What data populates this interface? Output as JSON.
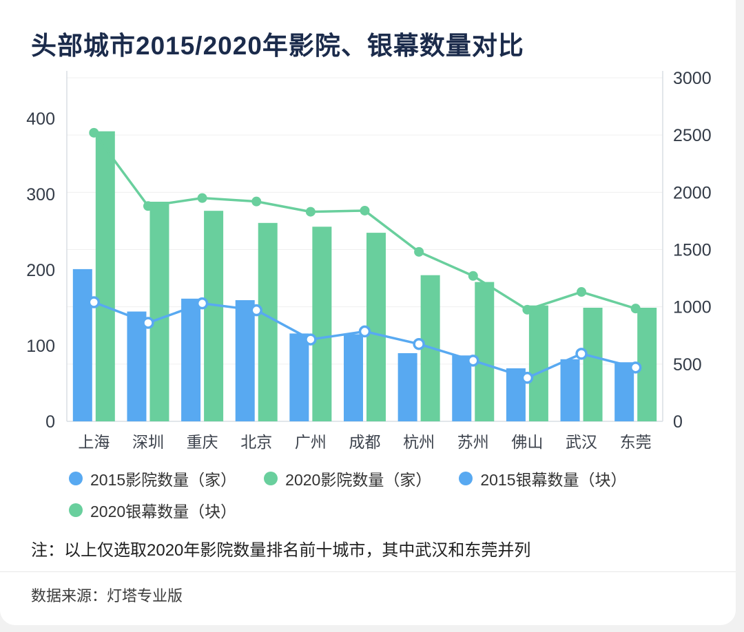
{
  "title": "头部城市2015/2020年影院、银幕数量对比",
  "note": "注：以上仅选取2020年影院数量排名前十城市，其中武汉和东莞并列",
  "source": "数据来源：灯塔专业版",
  "colors": {
    "blue": "#58a9f1",
    "green": "#69cf9d",
    "title_text": "#1b2b4b",
    "axis_text": "#333b47",
    "category_text": "#3d434d",
    "grid": "#efefef",
    "axis_line": "#d9dde3",
    "legend_text": "#333333",
    "divider": "#e8e8e8",
    "card_bg": "#ffffff"
  },
  "chart_data": {
    "type": "bar",
    "subtype": "grouped bars + two lines, dual y-axes",
    "title": "头部城市2015/2020年影院、银幕数量对比",
    "categories": [
      "上海",
      "深圳",
      "重庆",
      "北京",
      "广州",
      "成都",
      "杭州",
      "苏州",
      "佛山",
      "武汉",
      "东莞"
    ],
    "left_axis": {
      "ticks": [
        0,
        100,
        200,
        300,
        400
      ],
      "applies_to": "影院数量（家）"
    },
    "right_axis": {
      "ticks": [
        0,
        500,
        1000,
        1500,
        2000,
        2500,
        3000
      ],
      "applies_to": "银幕数量（块）"
    },
    "legend_position": "bottom",
    "grid": "faint horizontal lines",
    "series": [
      {
        "name": "2015影院数量（家）",
        "type": "bar",
        "axis": "left",
        "color_key": "blue",
        "marker": "none",
        "values": [
          201,
          145,
          162,
          160,
          116,
          115,
          90,
          87,
          70,
          82,
          78
        ]
      },
      {
        "name": "2020影院数量（家）",
        "type": "bar",
        "axis": "left",
        "color_key": "green",
        "marker": "none",
        "values": [
          383,
          290,
          278,
          262,
          257,
          249,
          193,
          184,
          153,
          150,
          150
        ]
      },
      {
        "name": "2015银幕数量（块）",
        "type": "line",
        "axis": "right",
        "color_key": "blue",
        "marker": "hollow",
        "values": [
          1040,
          860,
          1030,
          970,
          715,
          785,
          675,
          530,
          380,
          590,
          470
        ]
      },
      {
        "name": "2020银幕数量（块）",
        "type": "line",
        "axis": "right",
        "color_key": "green",
        "marker": "solid",
        "values": [
          2520,
          1880,
          1950,
          1920,
          1830,
          1840,
          1480,
          1270,
          975,
          1130,
          985
        ]
      }
    ]
  }
}
